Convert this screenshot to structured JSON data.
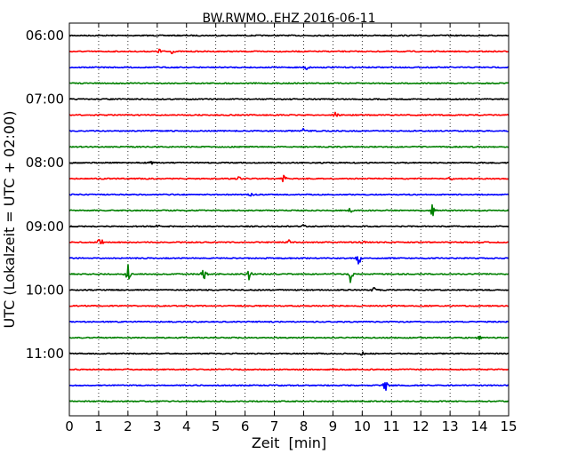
{
  "chart_data": {
    "type": "line",
    "title": "BW.RWMO..EHZ 2016-06-11",
    "xlabel": "Zeit  [min]",
    "ylabel": "UTC (Lokalzeit = UTC + 02:00)",
    "xlim": [
      0,
      15
    ],
    "xticks": [
      0,
      1,
      2,
      3,
      4,
      5,
      6,
      7,
      8,
      9,
      10,
      11,
      12,
      13,
      14,
      15
    ],
    "grid": "vertical-dotted",
    "ytick_labels": [
      {
        "label": "06:00",
        "row": 0
      },
      {
        "label": "07:00",
        "row": 4
      },
      {
        "label": "08:00",
        "row": 8
      },
      {
        "label": "09:00",
        "row": 12
      },
      {
        "label": "10:00",
        "row": 16
      },
      {
        "label": "11:00",
        "row": 20
      }
    ],
    "trace_colors": [
      "#000000",
      "#ff0000",
      "#0000ff",
      "#008000"
    ],
    "traces": [
      {
        "start": "06:00",
        "events": []
      },
      {
        "start": "06:15",
        "events": [
          {
            "t": 3.1,
            "amp": 0.35
          },
          {
            "t": 3.5,
            "amp": 0.2
          }
        ]
      },
      {
        "start": "06:30",
        "events": [
          {
            "t": 8.1,
            "amp": 0.3
          }
        ]
      },
      {
        "start": "06:45",
        "events": []
      },
      {
        "start": "07:00",
        "events": []
      },
      {
        "start": "07:15",
        "events": [
          {
            "t": 9.1,
            "amp": 0.35
          }
        ]
      },
      {
        "start": "07:30",
        "events": [
          {
            "t": 8.0,
            "amp": 0.2
          }
        ]
      },
      {
        "start": "07:45",
        "events": []
      },
      {
        "start": "08:00",
        "events": [
          {
            "t": 2.8,
            "amp": 0.2
          }
        ]
      },
      {
        "start": "08:15",
        "events": [
          {
            "t": 5.8,
            "amp": 0.25
          },
          {
            "t": 7.3,
            "amp": 0.6
          },
          {
            "t": 13.0,
            "amp": 0.2
          }
        ]
      },
      {
        "start": "08:30",
        "events": [
          {
            "t": 6.2,
            "amp": 0.2
          }
        ]
      },
      {
        "start": "08:45",
        "events": [
          {
            "t": 9.6,
            "amp": 0.3
          },
          {
            "t": 12.4,
            "amp": 0.8
          }
        ]
      },
      {
        "start": "09:00",
        "events": [
          {
            "t": 3.0,
            "amp": 0.2
          },
          {
            "t": 8.0,
            "amp": 0.2
          }
        ]
      },
      {
        "start": "09:15",
        "events": [
          {
            "t": 1.05,
            "amp": 0.7
          },
          {
            "t": 7.5,
            "amp": 0.2
          },
          {
            "t": 10.0,
            "amp": 0.25
          }
        ]
      },
      {
        "start": "09:30",
        "events": [
          {
            "t": 9.9,
            "amp": 1.0
          }
        ]
      },
      {
        "start": "09:45",
        "events": [
          {
            "t": 2.0,
            "amp": 0.8
          },
          {
            "t": 4.6,
            "amp": 0.7
          },
          {
            "t": 6.15,
            "amp": 0.7
          },
          {
            "t": 9.6,
            "amp": 1.1
          }
        ]
      },
      {
        "start": "10:00",
        "events": [
          {
            "t": 10.4,
            "amp": 0.2
          }
        ]
      },
      {
        "start": "10:15",
        "events": []
      },
      {
        "start": "10:30",
        "events": []
      },
      {
        "start": "10:45",
        "events": [
          {
            "t": 14.0,
            "amp": 0.25
          }
        ]
      },
      {
        "start": "11:00",
        "events": [
          {
            "t": 10.0,
            "amp": 0.2
          }
        ]
      },
      {
        "start": "11:15",
        "events": []
      },
      {
        "start": "11:30",
        "events": [
          {
            "t": 10.8,
            "amp": 0.75
          }
        ]
      },
      {
        "start": "11:45",
        "events": []
      }
    ]
  }
}
